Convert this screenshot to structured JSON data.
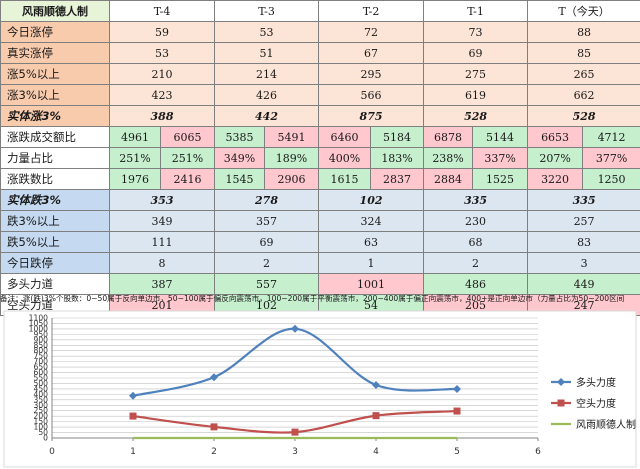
{
  "table": {
    "title": "风雨顺德人制",
    "headers": [
      "T-4",
      "T-3",
      "T-2",
      "T-1",
      "T（今天）"
    ],
    "single_rows": [
      {
        "label": "今日涨停",
        "values": [
          "59",
          "53",
          "72",
          "73",
          "88"
        ]
      },
      {
        "label": "真实涨停",
        "values": [
          "53",
          "51",
          "67",
          "69",
          "85"
        ]
      },
      {
        "label": "涨5%以上",
        "values": [
          "210",
          "214",
          "295",
          "275",
          "265"
        ]
      },
      {
        "label": "涨3%以上",
        "values": [
          "423",
          "426",
          "566",
          "619",
          "662"
        ]
      },
      {
        "label": "实体涨3%",
        "values": [
          "388",
          "442",
          "875",
          "528",
          "528"
        ]
      }
    ],
    "pair_rows": [
      {
        "label": "涨跌成交额比",
        "values": [
          "4961",
          "6065",
          "5385",
          "5491",
          "6460",
          "5184",
          "6878",
          "5144",
          "6653",
          "4712"
        ],
        "colors": [
          "g",
          "r",
          "g",
          "r",
          "r",
          "g",
          "r",
          "g",
          "r",
          "g"
        ]
      },
      {
        "label": "力量占比",
        "values": [
          "251%",
          "251%",
          "349%",
          "189%",
          "400%",
          "183%",
          "238%",
          "337%",
          "207%",
          "377%"
        ],
        "colors": [
          "g",
          "g",
          "r",
          "g",
          "r",
          "g",
          "g",
          "r",
          "g",
          "r"
        ]
      },
      {
        "label": "涨跌数比",
        "values": [
          "1976",
          "2416",
          "1545",
          "2906",
          "1615",
          "2837",
          "2884",
          "1525",
          "3220",
          "1250"
        ],
        "colors": [
          "g",
          "r",
          "g",
          "r",
          "g",
          "r",
          "r",
          "g",
          "r",
          "g"
        ]
      }
    ],
    "down_rows": [
      {
        "label": "实体跌3%",
        "values": [
          "353",
          "278",
          "102",
          "335",
          "335"
        ]
      },
      {
        "label": "跌3%以上",
        "values": [
          "349",
          "357",
          "324",
          "230",
          "257"
        ]
      },
      {
        "label": "跌5%以上",
        "values": [
          "111",
          "69",
          "63",
          "68",
          "83"
        ]
      },
      {
        "label": "今日跌停",
        "values": [
          "8",
          "2",
          "1",
          "2",
          "3"
        ]
      }
    ],
    "force_rows": [
      {
        "label": "多头力道",
        "values": [
          "387",
          "557",
          "1001",
          "486",
          "449"
        ],
        "colors": [
          "g",
          "g",
          "r",
          "g",
          "g"
        ]
      },
      {
        "label": "空头力道",
        "values": [
          "201",
          "102",
          "54",
          "205",
          "247"
        ],
        "colors": [
          "r",
          "g",
          "g",
          "r",
          "r"
        ]
      }
    ]
  },
  "note": "备注：涨(跌)3%个股数：0~50属于反向单边市，50~100属于偏反向震荡市，100~200属于平衡震荡市，200~400属于偏正向震荡市，400+是正向单边市（力量占比为50~200区间",
  "chart_data": {
    "type": "line",
    "x": [
      1,
      2,
      3,
      4,
      5
    ],
    "xlim": [
      0,
      6
    ],
    "xticks": [
      "0",
      "1",
      "2",
      "3",
      "4",
      "5",
      "6"
    ],
    "ylim": [
      0,
      1100
    ],
    "yticks": [
      "0",
      "50",
      "100",
      "150",
      "200",
      "250",
      "300",
      "350",
      "400",
      "450",
      "500",
      "550",
      "600",
      "650",
      "700",
      "750",
      "800",
      "850",
      "900",
      "950",
      "1000",
      "1050",
      "1100"
    ],
    "grid": true,
    "legend_position": "right",
    "series": [
      {
        "name": "多头力度",
        "values": [
          387,
          557,
          1001,
          486,
          449
        ],
        "color": "#4f81bd",
        "marker": "diamond"
      },
      {
        "name": "空头力度",
        "values": [
          201,
          102,
          54,
          205,
          247
        ],
        "color": "#c0504d",
        "marker": "square"
      },
      {
        "name": "风雨顺德人制",
        "values": [
          0,
          0,
          0,
          0,
          0
        ],
        "color": "#9bbb59",
        "marker": "none"
      }
    ]
  }
}
